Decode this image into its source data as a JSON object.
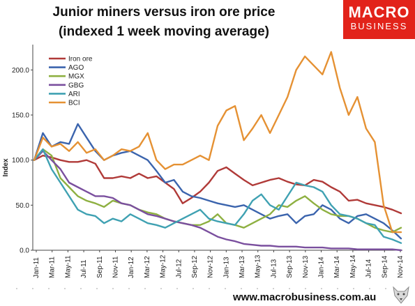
{
  "header": {
    "title_line1": "Junior miners versus iron ore price",
    "title_line2": "(indexed 1 week moving average)"
  },
  "logo": {
    "line1": "MACRO",
    "line2": "BUSINESS",
    "color": "#e2231a"
  },
  "footer": {
    "url": "www.macrobusiness.com.au"
  },
  "chart_data": {
    "type": "line",
    "ylabel": "Index",
    "ylim": [
      0,
      225
    ],
    "yticks": [
      "0.0",
      "50.0",
      "100.0",
      "150.0",
      "200.0"
    ],
    "xticks": [
      "Jan-11",
      "Mar-11",
      "May-11",
      "Jul-11",
      "Sep-11",
      "Nov-11",
      "Jan-12",
      "Mar-12",
      "May-12",
      "Jul-12",
      "Sep-12",
      "Nov-12",
      "Jan-13",
      "Mar-13",
      "May-13",
      "Jul-13",
      "Sep-13",
      "Nov-13",
      "Jan-14",
      "Mar-14",
      "May-14",
      "Jul-14",
      "Sep-14",
      "Nov-14"
    ],
    "legend_position": "top-left",
    "series": [
      {
        "name": "Iron ore",
        "color": "#b03a38",
        "values": [
          100,
          105,
          103,
          100,
          98,
          98,
          100,
          96,
          80,
          80,
          82,
          80,
          85,
          80,
          82,
          75,
          68,
          52,
          58,
          65,
          75,
          88,
          92,
          85,
          78,
          72,
          75,
          78,
          80,
          76,
          73,
          72,
          78,
          76,
          70,
          65,
          55,
          56,
          52,
          50,
          48,
          45,
          41
        ]
      },
      {
        "name": "AGO",
        "color": "#3b64ad",
        "values": [
          100,
          130,
          115,
          120,
          118,
          140,
          125,
          110,
          100,
          105,
          108,
          110,
          105,
          100,
          88,
          75,
          78,
          65,
          60,
          58,
          55,
          52,
          50,
          48,
          50,
          45,
          40,
          35,
          38,
          40,
          30,
          38,
          40,
          50,
          45,
          35,
          30,
          38,
          40,
          35,
          30,
          22,
          13
        ]
      },
      {
        "name": "MGX",
        "color": "#8eb041",
        "values": [
          100,
          112,
          105,
          80,
          70,
          60,
          55,
          52,
          48,
          55,
          52,
          50,
          45,
          42,
          40,
          35,
          32,
          30,
          28,
          28,
          32,
          40,
          30,
          28,
          25,
          30,
          35,
          40,
          50,
          48,
          55,
          60,
          52,
          45,
          40,
          38,
          38,
          35,
          30,
          25,
          22,
          20,
          25
        ]
      },
      {
        "name": "GBG",
        "color": "#7a4f9e",
        "values": [
          100,
          110,
          100,
          90,
          75,
          70,
          65,
          60,
          60,
          58,
          52,
          50,
          45,
          40,
          38,
          35,
          32,
          30,
          28,
          25,
          20,
          15,
          12,
          10,
          7,
          6,
          5,
          5,
          4,
          4,
          4,
          3,
          3,
          3,
          2,
          2,
          2,
          1,
          1,
          1,
          1,
          1,
          0
        ]
      },
      {
        "name": "ARI",
        "color": "#3fa1b2",
        "values": [
          100,
          112,
          90,
          75,
          60,
          45,
          40,
          38,
          30,
          35,
          32,
          40,
          35,
          30,
          28,
          25,
          30,
          35,
          40,
          45,
          35,
          32,
          30,
          28,
          40,
          55,
          62,
          50,
          45,
          60,
          75,
          72,
          70,
          65,
          50,
          40,
          38,
          35,
          30,
          28,
          15,
          12,
          8
        ]
      },
      {
        "name": "BCI",
        "color": "#e59133",
        "values": [
          100,
          125,
          115,
          118,
          110,
          120,
          108,
          112,
          100,
          105,
          112,
          110,
          115,
          130,
          100,
          90,
          95,
          95,
          100,
          105,
          100,
          138,
          155,
          160,
          122,
          135,
          150,
          130,
          150,
          170,
          200,
          215,
          205,
          195,
          220,
          180,
          150,
          170,
          135,
          120,
          50,
          20,
          20
        ]
      }
    ]
  }
}
